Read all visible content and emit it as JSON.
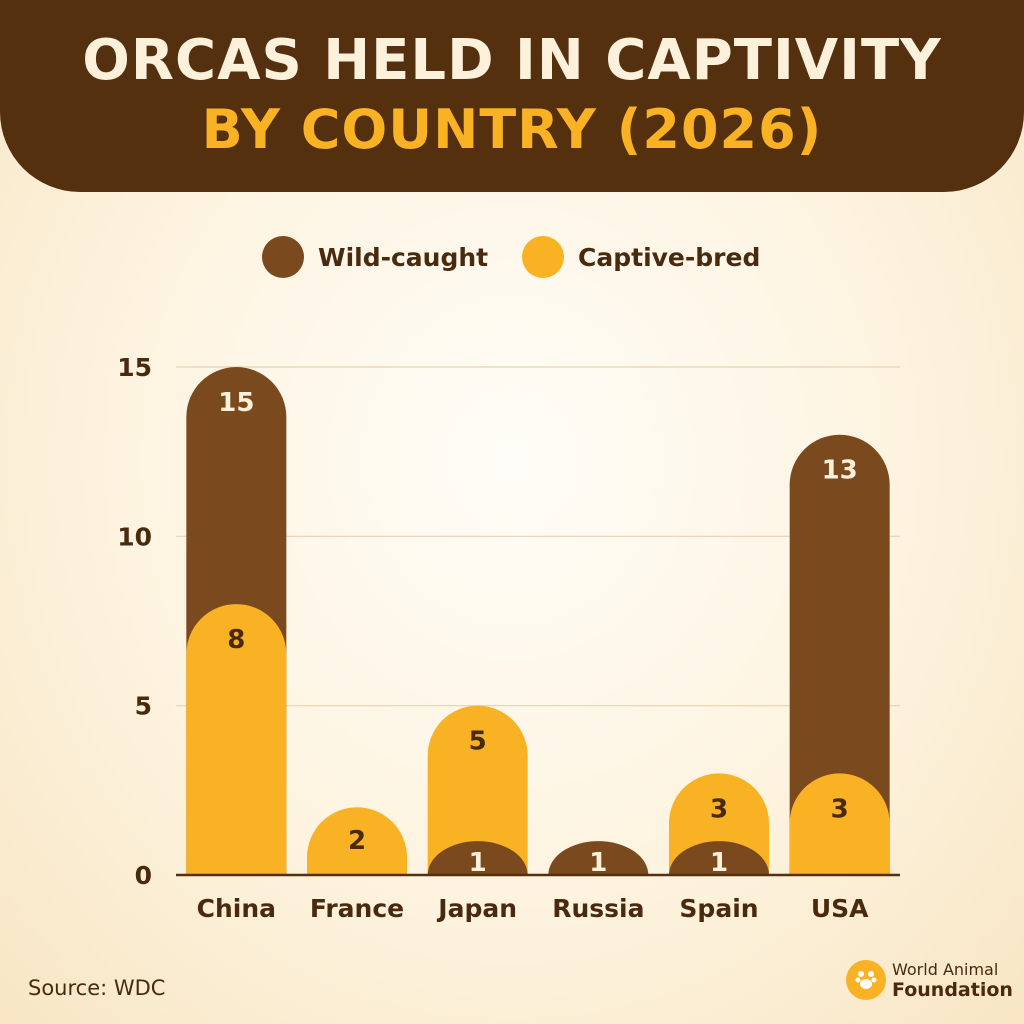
{
  "header": {
    "title_line1": "ORCAS HELD IN CAPTIVITY",
    "title_line2": "BY COUNTRY (2026)"
  },
  "legend": [
    {
      "label": "Wild-caught",
      "color": "#7a4a1e"
    },
    {
      "label": "Captive-bred",
      "color": "#f8b224"
    }
  ],
  "chart_data": {
    "type": "bar",
    "title": "ORCAS HELD IN CAPTIVITY BY COUNTRY (2026)",
    "categories": [
      "China",
      "France",
      "Japan",
      "Russia",
      "Spain",
      "USA"
    ],
    "series": [
      {
        "name": "Wild-caught",
        "color": "#7a4a1e",
        "values": [
          15,
          null,
          1,
          1,
          1,
          13
        ]
      },
      {
        "name": "Captive-bred",
        "color": "#f8b224",
        "values": [
          8,
          2,
          5,
          null,
          3,
          3
        ]
      }
    ],
    "ylim": [
      0,
      15
    ],
    "yticks": [
      0,
      5,
      10,
      15
    ],
    "grid": true,
    "legend_position": "top",
    "bars_overlapping": true
  },
  "footer": {
    "source": "Source: WDC",
    "brand_line1": "World Animal",
    "brand_line2": "Foundation"
  }
}
